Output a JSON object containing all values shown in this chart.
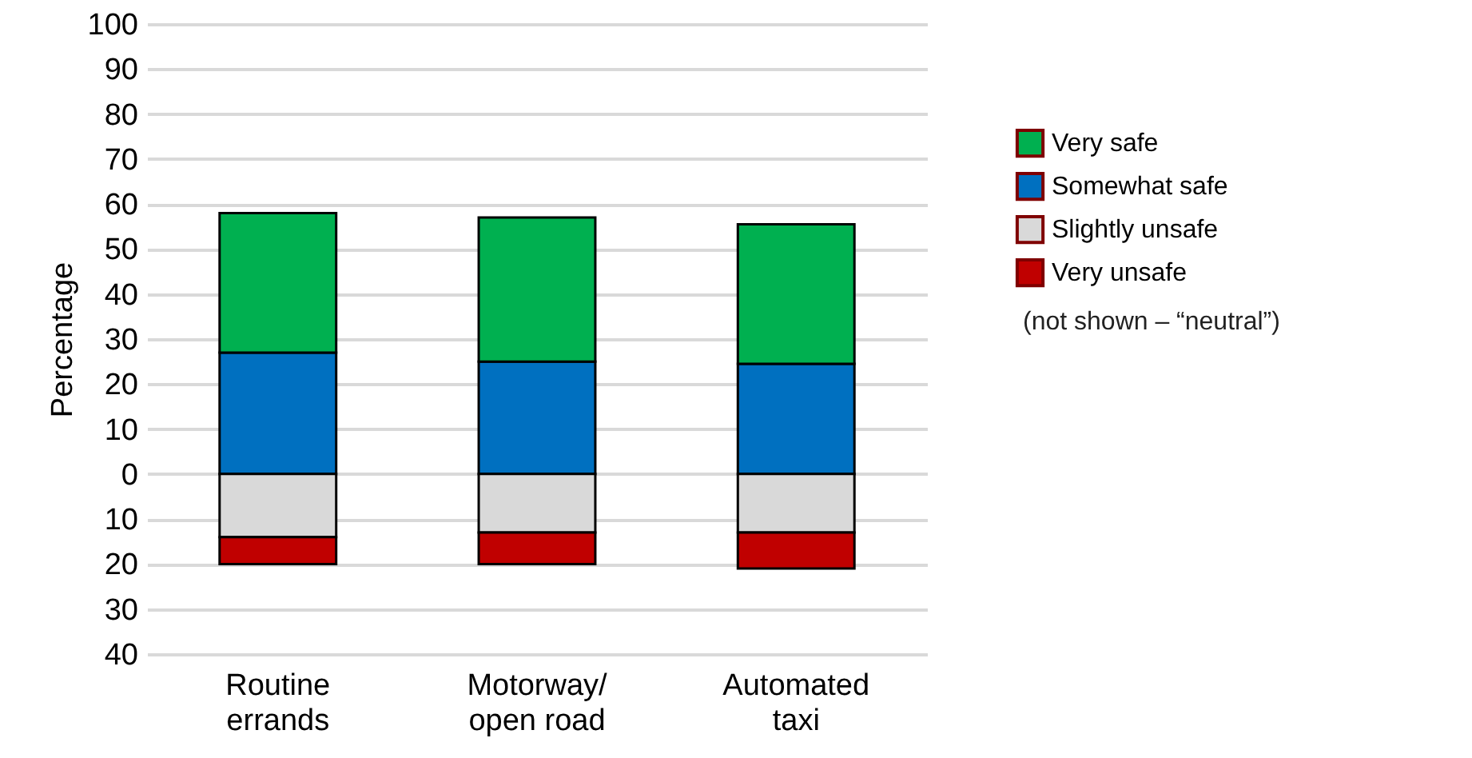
{
  "chart_data": {
    "type": "bar",
    "stacked": true,
    "ylabel": "Percentage",
    "categories": [
      "Routine errands",
      "Motorway/ open road",
      "Automated taxi"
    ],
    "series": [
      {
        "name": "Somewhat safe",
        "color": "#0070c0",
        "values": [
          27,
          25,
          24.5
        ]
      },
      {
        "name": "Very safe",
        "color": "#00b050",
        "values": [
          31,
          32,
          31
        ]
      },
      {
        "name": "Slightly unsafe",
        "color": "#d9d9d9",
        "values": [
          -14,
          -13,
          -13
        ]
      },
      {
        "name": "Very unsafe",
        "color": "#c00000",
        "values": [
          -6,
          -7,
          -8
        ]
      }
    ],
    "ylim": [
      -40,
      100
    ],
    "yticks": [
      {
        "value": -40,
        "label": "40"
      },
      {
        "value": -30,
        "label": "30"
      },
      {
        "value": -20,
        "label": "20"
      },
      {
        "value": -10,
        "label": "10"
      },
      0,
      10,
      20,
      30,
      40,
      50,
      60,
      70,
      80,
      90,
      100
    ],
    "grid": "y",
    "legend": "right",
    "annotations": [
      "(not shown – “neutral”)"
    ]
  }
}
